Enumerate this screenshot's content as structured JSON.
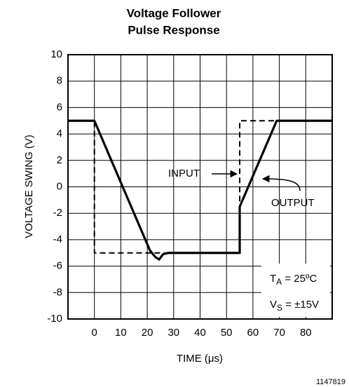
{
  "chart_data": {
    "type": "line",
    "title": [
      "Voltage Follower",
      "Pulse Response"
    ],
    "xlabel": "TIME (μs)",
    "ylabel": "VOLTAGE SWING (V)",
    "xlim": [
      -10,
      90
    ],
    "ylim": [
      -10,
      10
    ],
    "xticks": [
      0,
      10,
      20,
      30,
      40,
      50,
      60,
      70,
      80
    ],
    "yticks": [
      -10,
      -8,
      -6,
      -4,
      -2,
      0,
      2,
      4,
      6,
      8,
      10
    ],
    "grid": true,
    "series": [
      {
        "name": "INPUT",
        "color": "#000000",
        "style": "dashed",
        "x": [
          -10,
          0,
          0,
          55,
          55,
          90
        ],
        "values": [
          5,
          5,
          -5,
          -5,
          5,
          5
        ]
      },
      {
        "name": "OUTPUT",
        "color": "#000000",
        "style": "solid",
        "x": [
          -10,
          0,
          21,
          23,
          24.5,
          26,
          28,
          55,
          55,
          69,
          90
        ],
        "values": [
          5,
          5,
          -4.8,
          -5.3,
          -5.5,
          -5.1,
          -5,
          -5,
          -1.5,
          5,
          5
        ]
      }
    ],
    "conditions": [
      {
        "main": "T",
        "sub": "A",
        "rest": " = 25ºC"
      },
      {
        "main": "V",
        "sub": "S",
        "rest": " = ±15V"
      }
    ],
    "figure_id": "1147819"
  }
}
